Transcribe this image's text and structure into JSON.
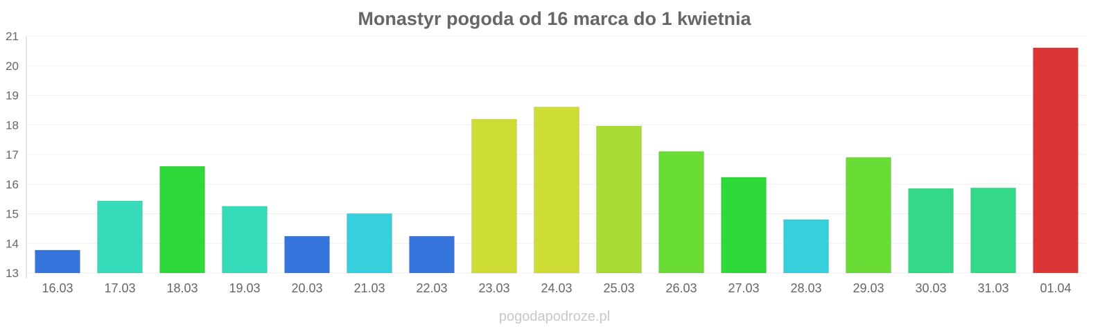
{
  "chart_data": {
    "type": "bar",
    "title": "Monastyr pogoda od 16 marca do 1 kwietnia",
    "xlabel": "",
    "ylabel": "",
    "ylim": [
      13,
      21
    ],
    "yticks": [
      13,
      14,
      15,
      16,
      17,
      18,
      19,
      20,
      21
    ],
    "grid": true,
    "categories": [
      "16.03",
      "17.03",
      "18.03",
      "19.03",
      "20.03",
      "21.03",
      "22.03",
      "23.03",
      "24.03",
      "25.03",
      "26.03",
      "27.03",
      "28.03",
      "29.03",
      "30.03",
      "31.03",
      "01.04"
    ],
    "values": [
      13.77,
      15.43,
      16.6,
      15.25,
      14.24,
      15.0,
      14.24,
      18.19,
      18.6,
      17.96,
      17.1,
      16.23,
      14.8,
      16.9,
      15.85,
      15.87,
      20.6
    ],
    "colors": [
      "#3575dc",
      "#36dbb9",
      "#30d93a",
      "#36dbb9",
      "#3575dc",
      "#36cfdc",
      "#3575dc",
      "#cedd33",
      "#cedd33",
      "#a9dd33",
      "#6adc36",
      "#30d93a",
      "#36cfdc",
      "#6adc36",
      "#33d987",
      "#33d987",
      "#db3535"
    ]
  },
  "watermark": "pogodapodroze.pl"
}
